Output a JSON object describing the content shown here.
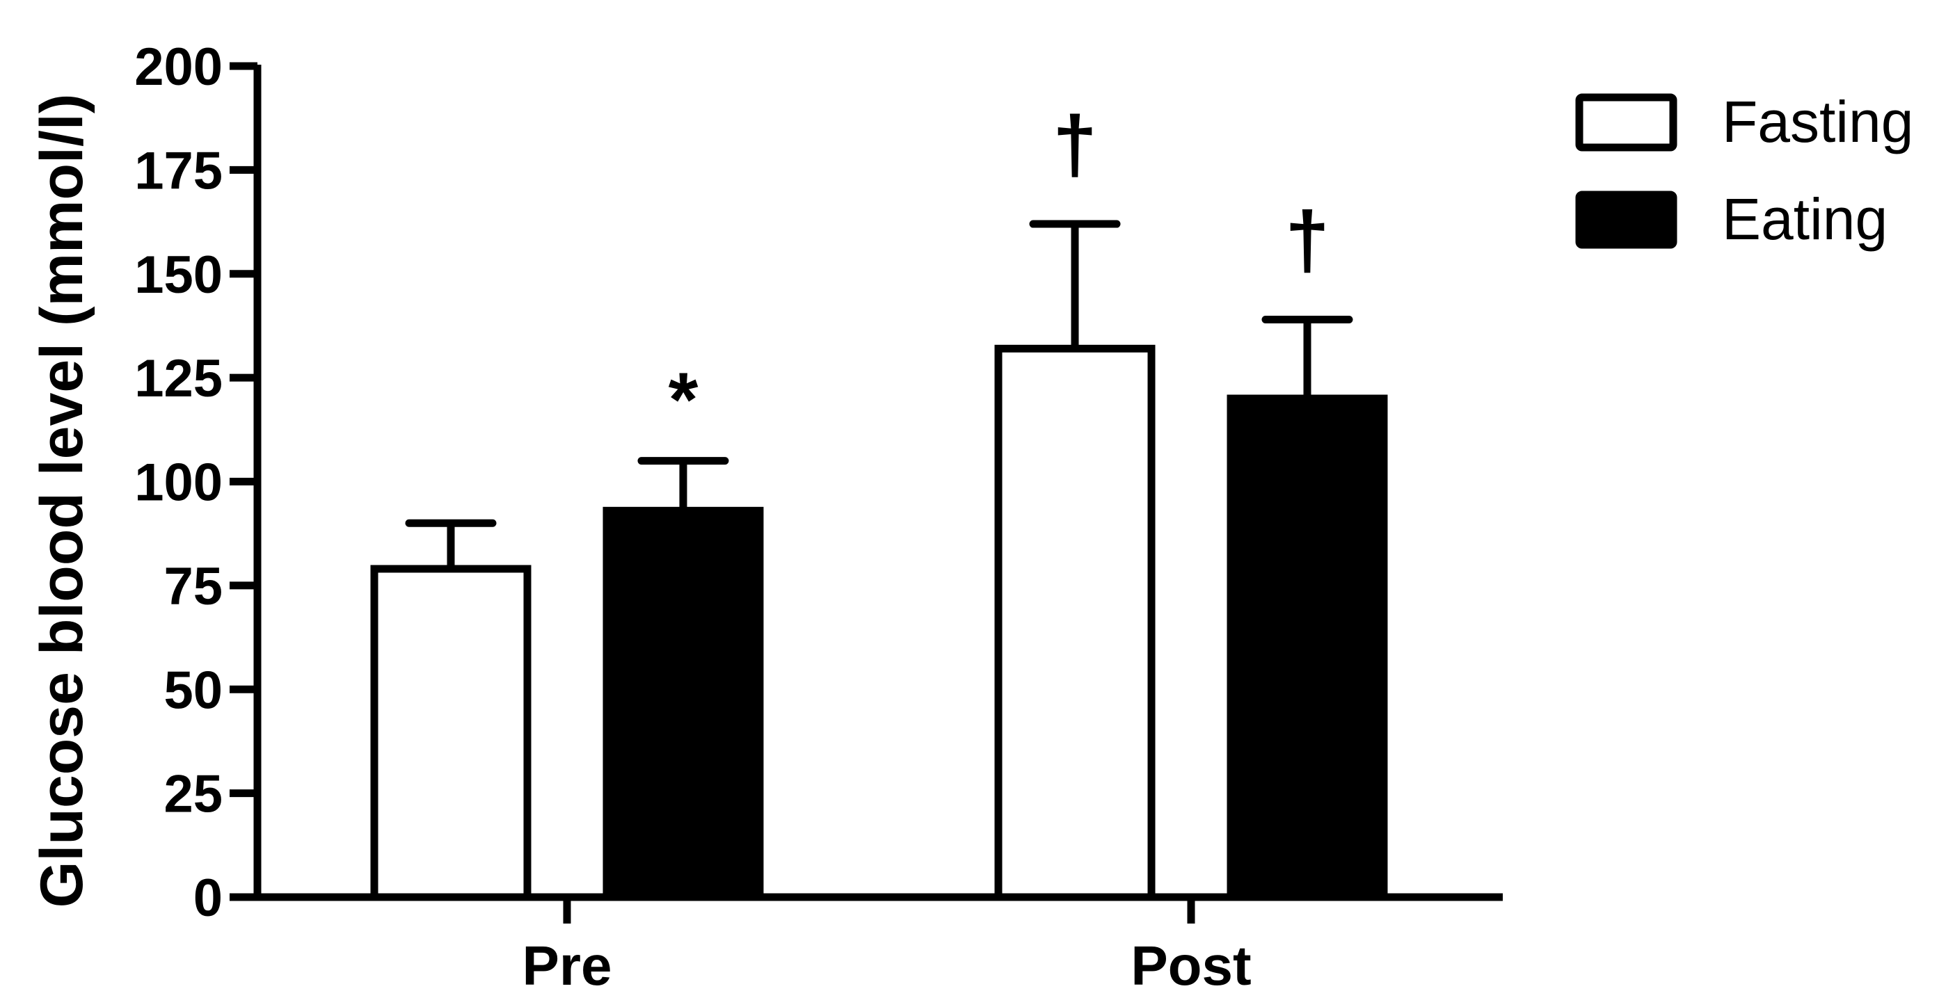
{
  "chart_data": {
    "type": "bar",
    "title": "",
    "xlabel": "",
    "ylabel": "Glucose blood level (mmol/l)",
    "ylim": [
      0,
      200
    ],
    "yticks": [
      "0",
      "25",
      "50",
      "75",
      "100",
      "125",
      "150",
      "175",
      "200"
    ],
    "categories": [
      "Pre",
      "Post"
    ],
    "series": [
      {
        "name": "Fasting",
        "fill": "#ffffff",
        "values": [
          79,
          132
        ],
        "errors": [
          11,
          30
        ]
      },
      {
        "name": "Eating",
        "fill": "#000000",
        "values": [
          93,
          120
        ],
        "errors": [
          12,
          19
        ]
      }
    ],
    "annotations": [
      {
        "series": 1,
        "category": 0,
        "text": "*"
      },
      {
        "series": 0,
        "category": 1,
        "text": "†"
      },
      {
        "series": 1,
        "category": 1,
        "text": "†"
      }
    ],
    "legend": {
      "position": "top-right"
    },
    "grid": false,
    "colors": {
      "axis": "#000000",
      "bar_edge": "#000000"
    }
  }
}
